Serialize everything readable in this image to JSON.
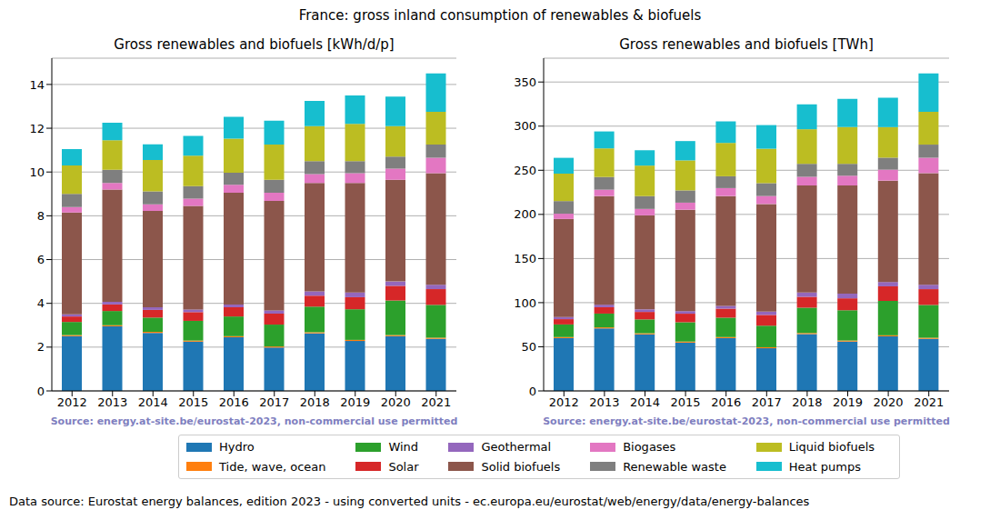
{
  "title": "France: gross inland consumption of renewables & biofuels",
  "footer": "Data source: Eurostat energy balances, edition 2023 - using converted units - ec.europa.eu/eurostat/web/energy/data/energy-balances",
  "legend": "bottom",
  "chart_data": [
    {
      "type": "bar",
      "title": "Gross renewables and biofuels [kWh/d/p]",
      "annotation": "Source: energy.at-site.be/eurostat-2023, non-commercial use permitted",
      "categories": [
        "2012",
        "2013",
        "2014",
        "2015",
        "2016",
        "2017",
        "2018",
        "2019",
        "2020",
        "2021"
      ],
      "stacked": true,
      "grid": true,
      "ylim": [
        0,
        15.2
      ],
      "yticks": [
        0,
        2,
        4,
        6,
        8,
        10,
        12,
        14
      ],
      "series": [
        {
          "name": "Hydro",
          "color": "#1f77b4",
          "values": [
            2.5,
            2.95,
            2.65,
            2.25,
            2.45,
            1.98,
            2.63,
            2.28,
            2.5,
            2.38
          ]
        },
        {
          "name": "Tide, wave, ocean",
          "color": "#ff7f0e",
          "values": [
            0.05,
            0.05,
            0.05,
            0.05,
            0.05,
            0.05,
            0.05,
            0.05,
            0.05,
            0.05
          ]
        },
        {
          "name": "Wind",
          "color": "#2ca02c",
          "values": [
            0.6,
            0.65,
            0.65,
            0.9,
            0.9,
            1.0,
            1.17,
            1.4,
            1.58,
            1.5
          ]
        },
        {
          "name": "Solar",
          "color": "#d62728",
          "values": [
            0.25,
            0.3,
            0.35,
            0.4,
            0.42,
            0.5,
            0.5,
            0.55,
            0.67,
            0.72
          ]
        },
        {
          "name": "Geothermal",
          "color": "#9467bd",
          "values": [
            0.1,
            0.12,
            0.12,
            0.12,
            0.13,
            0.15,
            0.2,
            0.22,
            0.2,
            0.2
          ]
        },
        {
          "name": "Solid biofuels",
          "color": "#8c564b",
          "values": [
            4.65,
            5.13,
            4.4,
            4.73,
            5.1,
            5.0,
            4.95,
            5.0,
            4.65,
            5.1
          ]
        },
        {
          "name": "Biogases",
          "color": "#e377c2",
          "values": [
            0.25,
            0.3,
            0.3,
            0.33,
            0.37,
            0.37,
            0.4,
            0.45,
            0.5,
            0.7
          ]
        },
        {
          "name": "Renewable waste",
          "color": "#7f7f7f",
          "values": [
            0.6,
            0.6,
            0.6,
            0.57,
            0.55,
            0.6,
            0.6,
            0.55,
            0.55,
            0.6
          ]
        },
        {
          "name": "Liquid biofuels",
          "color": "#bcbd22",
          "values": [
            1.3,
            1.35,
            1.43,
            1.4,
            1.55,
            1.6,
            1.6,
            1.7,
            1.4,
            1.5
          ]
        },
        {
          "name": "Heat pumps",
          "color": "#17becf",
          "values": [
            0.75,
            0.8,
            0.72,
            0.9,
            1.0,
            1.1,
            1.15,
            1.3,
            1.35,
            1.75
          ]
        }
      ]
    },
    {
      "type": "bar",
      "title": "Gross renewables and biofuels [TWh]",
      "annotation": "Source: energy.at-site.be/eurostat-2023, non-commercial use permitted",
      "categories": [
        "2012",
        "2013",
        "2014",
        "2015",
        "2016",
        "2017",
        "2018",
        "2019",
        "2020",
        "2021"
      ],
      "stacked": true,
      "grid": true,
      "ylim": [
        0,
        377
      ],
      "yticks": [
        0,
        50,
        100,
        150,
        200,
        250,
        300,
        350
      ],
      "series": [
        {
          "name": "Hydro",
          "color": "#1f77b4",
          "values": [
            59.8,
            70.8,
            64.1,
            54.7,
            59.8,
            48.3,
            64.4,
            55.9,
            61.8,
            59.0
          ]
        },
        {
          "name": "Tide, wave, ocean",
          "color": "#ff7f0e",
          "values": [
            1.2,
            1.2,
            1.2,
            1.2,
            1.2,
            1.2,
            1.2,
            1.2,
            1.2,
            1.2
          ]
        },
        {
          "name": "Wind",
          "color": "#2ca02c",
          "values": [
            14.3,
            15.6,
            15.7,
            21.9,
            22.0,
            24.4,
            28.7,
            34.3,
            39.0,
            37.2
          ]
        },
        {
          "name": "Solar",
          "color": "#d62728",
          "values": [
            6.0,
            7.2,
            8.5,
            9.7,
            10.2,
            12.2,
            12.3,
            13.5,
            16.5,
            17.9
          ]
        },
        {
          "name": "Geothermal",
          "color": "#9467bd",
          "values": [
            2.4,
            2.9,
            2.9,
            2.9,
            3.2,
            3.7,
            4.9,
            5.4,
            4.9,
            5.0
          ]
        },
        {
          "name": "Solid biofuels",
          "color": "#8c564b",
          "values": [
            111.1,
            123.1,
            106.5,
            114.9,
            124.4,
            122.0,
            121.3,
            122.5,
            114.9,
            126.5
          ]
        },
        {
          "name": "Biogases",
          "color": "#e377c2",
          "values": [
            6.0,
            7.2,
            7.3,
            8.0,
            9.0,
            9.0,
            9.8,
            11.0,
            12.4,
            17.4
          ]
        },
        {
          "name": "Renewable waste",
          "color": "#7f7f7f",
          "values": [
            14.3,
            14.4,
            14.5,
            13.9,
            13.4,
            14.6,
            14.7,
            13.5,
            13.6,
            14.9
          ]
        },
        {
          "name": "Liquid biofuels",
          "color": "#bcbd22",
          "values": [
            31.1,
            32.4,
            34.6,
            34.0,
            37.8,
            39.0,
            39.2,
            41.7,
            34.6,
            37.2
          ]
        },
        {
          "name": "Heat pumps",
          "color": "#17becf",
          "values": [
            17.9,
            19.2,
            17.4,
            21.9,
            24.4,
            26.8,
            28.2,
            31.9,
            33.3,
            43.4
          ]
        }
      ]
    }
  ]
}
